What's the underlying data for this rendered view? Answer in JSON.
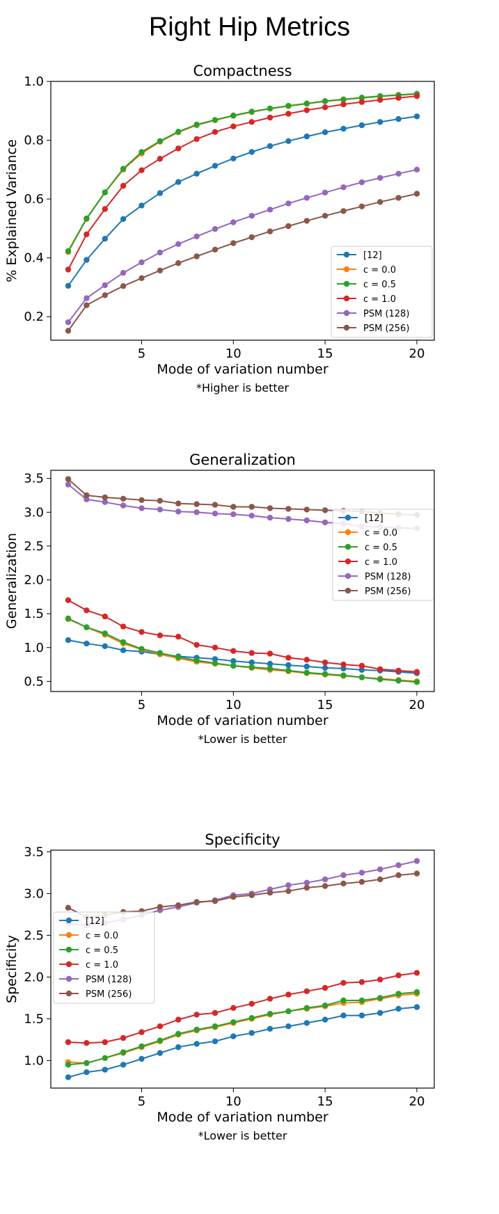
{
  "page_title": "Right Hip Metrics",
  "chart_data": [
    {
      "type": "line",
      "title": "Compactness",
      "xlabel": "Mode of variation number",
      "ylabel": "% Explained Variance",
      "note": "*Higher is better",
      "xlim": [
        0.05,
        20.95
      ],
      "ylim": [
        0.12,
        1.0
      ],
      "xticks": [
        5,
        10,
        15,
        20
      ],
      "yticks": [
        0.2,
        0.4,
        0.6,
        0.8,
        1.0
      ],
      "ytick_labels": [
        "0.2",
        "0.4",
        "0.6",
        "0.8",
        "1.0"
      ],
      "grid": false,
      "legend": "lower-right",
      "x": [
        1,
        2,
        3,
        4,
        5,
        6,
        7,
        8,
        9,
        10,
        11,
        12,
        13,
        14,
        15,
        16,
        17,
        18,
        19,
        20
      ],
      "series": [
        {
          "name": "[12]",
          "color": "#1f77b4",
          "values": [
            0.305,
            0.393,
            0.465,
            0.532,
            0.578,
            0.62,
            0.658,
            0.686,
            0.713,
            0.738,
            0.76,
            0.78,
            0.797,
            0.813,
            0.827,
            0.839,
            0.851,
            0.862,
            0.872,
            0.881
          ]
        },
        {
          "name": "c = 0.0",
          "color": "#ff7f0e",
          "values": [
            0.42,
            0.532,
            0.622,
            0.7,
            0.755,
            0.795,
            0.827,
            0.851,
            0.868,
            0.883,
            0.896,
            0.907,
            0.916,
            0.924,
            0.932,
            0.938,
            0.944,
            0.949,
            0.953,
            0.957
          ]
        },
        {
          "name": "c = 0.5",
          "color": "#2ca02c",
          "values": [
            0.423,
            0.534,
            0.623,
            0.703,
            0.76,
            0.797,
            0.829,
            0.853,
            0.869,
            0.884,
            0.897,
            0.908,
            0.917,
            0.925,
            0.933,
            0.939,
            0.945,
            0.95,
            0.954,
            0.958
          ]
        },
        {
          "name": "c = 1.0",
          "color": "#d62728",
          "values": [
            0.36,
            0.48,
            0.566,
            0.645,
            0.698,
            0.737,
            0.772,
            0.804,
            0.828,
            0.847,
            0.862,
            0.877,
            0.89,
            0.902,
            0.912,
            0.922,
            0.93,
            0.937,
            0.944,
            0.95
          ]
        },
        {
          "name": "PSM (128)",
          "color": "#9467bd",
          "values": [
            0.181,
            0.263,
            0.307,
            0.349,
            0.385,
            0.418,
            0.447,
            0.473,
            0.498,
            0.521,
            0.543,
            0.564,
            0.585,
            0.604,
            0.622,
            0.64,
            0.657,
            0.672,
            0.686,
            0.7
          ]
        },
        {
          "name": "PSM (256)",
          "color": "#8c564b",
          "values": [
            0.152,
            0.239,
            0.273,
            0.304,
            0.331,
            0.357,
            0.382,
            0.405,
            0.428,
            0.45,
            0.47,
            0.49,
            0.508,
            0.526,
            0.543,
            0.559,
            0.575,
            0.59,
            0.604,
            0.618
          ]
        }
      ]
    },
    {
      "type": "line",
      "title": "Generalization",
      "xlabel": "Mode of variation number",
      "ylabel": "Generalization",
      "note": "*Lower is better",
      "xlim": [
        0.05,
        20.95
      ],
      "ylim": [
        0.35,
        3.62
      ],
      "xticks": [
        5,
        10,
        15,
        20
      ],
      "yticks": [
        0.5,
        1.0,
        1.5,
        2.0,
        2.5,
        3.0,
        3.5
      ],
      "ytick_labels": [
        "0.5",
        "1.0",
        "1.5",
        "2.0",
        "2.5",
        "3.0",
        "3.5"
      ],
      "grid": false,
      "legend": "center-right",
      "x": [
        1,
        2,
        3,
        4,
        5,
        6,
        7,
        8,
        9,
        10,
        11,
        12,
        13,
        14,
        15,
        16,
        17,
        18,
        19,
        20
      ],
      "series": [
        {
          "name": "[12]",
          "color": "#1f77b4",
          "values": [
            1.11,
            1.06,
            1.02,
            0.96,
            0.94,
            0.9,
            0.87,
            0.85,
            0.83,
            0.8,
            0.78,
            0.76,
            0.74,
            0.72,
            0.7,
            0.69,
            0.67,
            0.66,
            0.64,
            0.62
          ]
        },
        {
          "name": "c = 0.0",
          "color": "#ff7f0e",
          "values": [
            1.42,
            1.3,
            1.19,
            1.06,
            0.97,
            0.9,
            0.84,
            0.79,
            0.76,
            0.73,
            0.7,
            0.67,
            0.65,
            0.62,
            0.6,
            0.58,
            0.56,
            0.54,
            0.52,
            0.5
          ]
        },
        {
          "name": "c = 0.5",
          "color": "#2ca02c",
          "values": [
            1.43,
            1.3,
            1.21,
            1.08,
            0.98,
            0.92,
            0.86,
            0.81,
            0.77,
            0.73,
            0.71,
            0.69,
            0.66,
            0.63,
            0.61,
            0.59,
            0.56,
            0.53,
            0.51,
            0.49
          ]
        },
        {
          "name": "c = 1.0",
          "color": "#d62728",
          "values": [
            1.7,
            1.55,
            1.46,
            1.31,
            1.23,
            1.18,
            1.16,
            1.04,
            1.0,
            0.95,
            0.92,
            0.91,
            0.85,
            0.82,
            0.78,
            0.75,
            0.73,
            0.68,
            0.66,
            0.64
          ]
        },
        {
          "name": "PSM (128)",
          "color": "#9467bd",
          "values": [
            3.41,
            3.19,
            3.15,
            3.1,
            3.06,
            3.04,
            3.01,
            3.0,
            2.98,
            2.97,
            2.95,
            2.92,
            2.9,
            2.88,
            2.85,
            2.83,
            2.79,
            2.78,
            2.77,
            2.76
          ]
        },
        {
          "name": "PSM (256)",
          "color": "#8c564b",
          "values": [
            3.49,
            3.25,
            3.22,
            3.2,
            3.18,
            3.17,
            3.13,
            3.12,
            3.11,
            3.08,
            3.08,
            3.06,
            3.05,
            3.04,
            3.03,
            3.02,
            3.01,
            2.99,
            2.97,
            2.96
          ]
        }
      ]
    },
    {
      "type": "line",
      "title": "Specificity",
      "xlabel": "Mode of variation number",
      "ylabel": "Specificity",
      "note": "*Lower is better",
      "xlim": [
        0.05,
        20.95
      ],
      "ylim": [
        0.67,
        3.52
      ],
      "xticks": [
        5,
        10,
        15,
        20
      ],
      "yticks": [
        1.0,
        1.5,
        2.0,
        2.5,
        3.0,
        3.5
      ],
      "ytick_labels": [
        "1.0",
        "1.5",
        "2.0",
        "2.5",
        "3.0",
        "3.5"
      ],
      "grid": false,
      "legend": "center-left",
      "x": [
        1,
        2,
        3,
        4,
        5,
        6,
        7,
        8,
        9,
        10,
        11,
        12,
        13,
        14,
        15,
        16,
        17,
        18,
        19,
        20
      ],
      "series": [
        {
          "name": "[12]",
          "color": "#1f77b4",
          "values": [
            0.8,
            0.86,
            0.89,
            0.95,
            1.02,
            1.09,
            1.16,
            1.2,
            1.23,
            1.29,
            1.33,
            1.38,
            1.41,
            1.45,
            1.49,
            1.54,
            1.54,
            1.57,
            1.62,
            1.64
          ]
        },
        {
          "name": "c = 0.0",
          "color": "#ff7f0e",
          "values": [
            0.98,
            0.97,
            1.03,
            1.09,
            1.16,
            1.23,
            1.31,
            1.36,
            1.4,
            1.45,
            1.5,
            1.55,
            1.59,
            1.62,
            1.65,
            1.69,
            1.7,
            1.74,
            1.78,
            1.8
          ]
        },
        {
          "name": "c = 0.5",
          "color": "#2ca02c",
          "values": [
            0.95,
            0.97,
            1.03,
            1.1,
            1.17,
            1.24,
            1.32,
            1.37,
            1.41,
            1.46,
            1.51,
            1.56,
            1.59,
            1.63,
            1.66,
            1.72,
            1.72,
            1.75,
            1.8,
            1.82
          ]
        },
        {
          "name": "c = 1.0",
          "color": "#d62728",
          "values": [
            1.22,
            1.21,
            1.22,
            1.27,
            1.34,
            1.41,
            1.49,
            1.55,
            1.57,
            1.63,
            1.68,
            1.74,
            1.79,
            1.83,
            1.87,
            1.93,
            1.94,
            1.97,
            2.02,
            2.05
          ]
        },
        {
          "name": "PSM (128)",
          "color": "#9467bd",
          "values": [
            2.64,
            2.62,
            2.65,
            2.69,
            2.74,
            2.8,
            2.84,
            2.89,
            2.92,
            2.98,
            3.0,
            3.05,
            3.1,
            3.13,
            3.17,
            3.22,
            3.25,
            3.29,
            3.34,
            3.39
          ]
        },
        {
          "name": "PSM (256)",
          "color": "#8c564b",
          "values": [
            2.83,
            2.72,
            2.74,
            2.78,
            2.79,
            2.84,
            2.86,
            2.9,
            2.91,
            2.96,
            2.98,
            3.01,
            3.03,
            3.07,
            3.09,
            3.12,
            3.14,
            3.17,
            3.22,
            3.24
          ]
        }
      ]
    }
  ]
}
